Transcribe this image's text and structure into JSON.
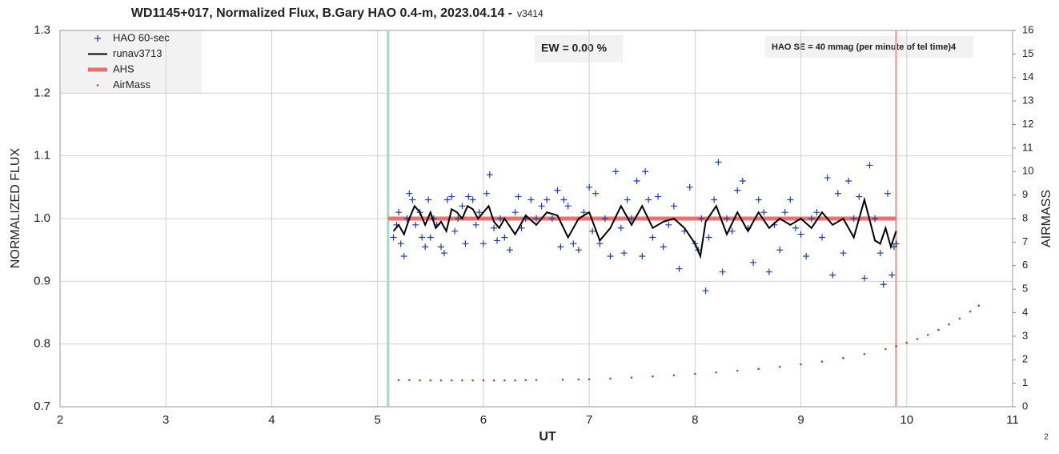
{
  "chart_data": {
    "type": "scatter",
    "title": "WD1145+017, Normalized Flux, B.Gary HAO 0.4-m, 2023.04.14 -",
    "version": "v3414",
    "x_label": "UT",
    "y_label": "NORMALIZED FLUX",
    "y2_label": "AIRMASS",
    "annotations": [
      "EW = 0.00 %",
      "HAO SE =  40 mmag (per minute of tel time)4"
    ],
    "page_number": "2",
    "xlim": [
      2,
      11
    ],
    "xticks": [
      2,
      3,
      4,
      5,
      6,
      7,
      8,
      9,
      10,
      11
    ],
    "ylim": [
      0.7,
      1.3
    ],
    "yticks": [
      0.7,
      0.8,
      0.9,
      {
        "value": 1,
        "label": "1.0"
      },
      1.1,
      1.2,
      1.3
    ],
    "y2lim": [
      0,
      16
    ],
    "y2ticks": [
      0,
      1,
      2,
      3,
      4,
      5,
      6,
      7,
      8,
      9,
      10,
      11,
      12,
      13,
      14,
      15,
      16
    ],
    "grid": true,
    "legend": "upper left",
    "vlines": [
      {
        "x": 5.1,
        "color": "#9fdcc4"
      },
      {
        "x": 9.9,
        "color": "#e9b3b3"
      }
    ],
    "series": [
      {
        "name": "HAO 60-sec",
        "color": "#1f3d99",
        "style": "plus",
        "x": [
          5.15,
          5.18,
          5.2,
          5.22,
          5.25,
          5.28,
          5.3,
          5.33,
          5.36,
          5.4,
          5.42,
          5.45,
          5.48,
          5.5,
          5.53,
          5.56,
          5.6,
          5.63,
          5.66,
          5.7,
          5.73,
          5.76,
          5.8,
          5.83,
          5.86,
          5.9,
          5.93,
          5.96,
          6.0,
          6.03,
          6.06,
          6.1,
          6.13,
          6.16,
          6.2,
          6.25,
          6.3,
          6.33,
          6.36,
          6.4,
          6.45,
          6.5,
          6.55,
          6.6,
          6.65,
          6.7,
          6.73,
          6.76,
          6.8,
          6.85,
          6.9,
          6.95,
          7.0,
          7.03,
          7.06,
          7.1,
          7.15,
          7.2,
          7.25,
          7.3,
          7.33,
          7.36,
          7.4,
          7.45,
          7.5,
          7.53,
          7.56,
          7.6,
          7.65,
          7.7,
          7.75,
          7.8,
          7.85,
          7.9,
          7.95,
          8.0,
          8.03,
          8.06,
          8.1,
          8.13,
          8.18,
          8.22,
          8.26,
          8.3,
          8.35,
          8.4,
          8.45,
          8.5,
          8.55,
          8.6,
          8.65,
          8.7,
          8.75,
          8.8,
          8.85,
          8.9,
          8.95,
          9.0,
          9.05,
          9.1,
          9.15,
          9.2,
          9.25,
          9.3,
          9.35,
          9.4,
          9.45,
          9.5,
          9.55,
          9.6,
          9.65,
          9.7,
          9.75,
          9.78,
          9.82,
          9.86,
          9.88,
          9.9
        ],
        "values": [
          0.97,
          0.99,
          1.01,
          0.96,
          0.94,
          1.0,
          1.04,
          1.03,
          0.99,
          1.01,
          0.97,
          0.955,
          1.03,
          0.97,
          1.0,
          0.99,
          0.955,
          0.945,
          1.03,
          1.035,
          0.98,
          1.0,
          1.02,
          0.96,
          1.035,
          1.03,
          0.99,
          1.01,
          0.96,
          1.04,
          1.07,
          0.985,
          0.965,
          1.0,
          0.97,
          0.95,
          1.01,
          1.035,
          0.985,
          1.0,
          1.03,
          1.0,
          1.02,
          1.03,
          1.0,
          1.045,
          0.955,
          1.03,
          1.02,
          0.96,
          0.95,
          1.01,
          1.05,
          0.98,
          1.04,
          0.96,
          1.0,
          0.94,
          1.075,
          0.985,
          0.945,
          1.03,
          1.0,
          1.06,
          0.94,
          1.075,
          1.03,
          0.97,
          1.035,
          0.955,
          0.99,
          1.02,
          0.92,
          0.98,
          1.05,
          0.96,
          0.95,
          1.0,
          0.885,
          0.97,
          1.03,
          1.09,
          0.915,
          1.0,
          0.98,
          1.045,
          1.06,
          0.985,
          0.93,
          1.03,
          1.01,
          0.915,
          0.99,
          0.95,
          1.01,
          1.03,
          0.985,
          0.975,
          0.94,
          1.0,
          1.01,
          0.97,
          1.065,
          0.91,
          1.04,
          0.945,
          1.06,
          1.0,
          1.035,
          0.905,
          1.085,
          1.0,
          0.945,
          0.895,
          1.04,
          0.91,
          0.955,
          0.96
        ]
      },
      {
        "name": "runav3713",
        "color": "#000000",
        "style": "line",
        "x": [
          5.15,
          5.2,
          5.25,
          5.3,
          5.35,
          5.4,
          5.45,
          5.5,
          5.55,
          5.6,
          5.65,
          5.7,
          5.75,
          5.8,
          5.85,
          5.9,
          5.95,
          6.0,
          6.05,
          6.1,
          6.15,
          6.2,
          6.3,
          6.4,
          6.5,
          6.6,
          6.7,
          6.8,
          6.9,
          7.0,
          7.1,
          7.2,
          7.3,
          7.4,
          7.5,
          7.6,
          7.7,
          7.8,
          7.9,
          8.0,
          8.05,
          8.1,
          8.2,
          8.3,
          8.4,
          8.5,
          8.6,
          8.7,
          8.8,
          8.9,
          9.0,
          9.1,
          9.2,
          9.3,
          9.4,
          9.5,
          9.6,
          9.7,
          9.75,
          9.8,
          9.85,
          9.9
        ],
        "values": [
          0.98,
          0.99,
          0.975,
          1.0,
          1.02,
          1.01,
          0.99,
          1.01,
          0.985,
          0.995,
          0.98,
          1.015,
          1.01,
          1.0,
          1.02,
          1.015,
          1.0,
          1.01,
          1.02,
          0.995,
          0.985,
          1.0,
          0.975,
          1.005,
          0.99,
          1.01,
          1.005,
          0.97,
          1.0,
          1.01,
          0.965,
          0.985,
          1.02,
          0.99,
          1.02,
          0.985,
          0.995,
          1.0,
          0.985,
          0.96,
          0.94,
          0.995,
          1.02,
          0.975,
          1.01,
          0.98,
          1.01,
          0.985,
          1.0,
          0.99,
          1.0,
          0.985,
          1.01,
          0.99,
          1.0,
          0.97,
          1.03,
          0.965,
          0.96,
          0.985,
          0.955,
          0.98
        ]
      },
      {
        "name": "AHS",
        "color": "#e87171",
        "style": "thick",
        "x": [
          5.1,
          9.9
        ],
        "values": [
          1.0,
          1.0
        ]
      },
      {
        "name": "AirMass",
        "color": "#a0522d",
        "style": "dot",
        "axis": "y2",
        "x": [
          5.2,
          5.3,
          5.4,
          5.5,
          5.6,
          5.7,
          5.8,
          5.9,
          6.0,
          6.1,
          6.2,
          6.3,
          6.4,
          6.5,
          6.75,
          6.9,
          7.0,
          7.2,
          7.4,
          7.6,
          7.8,
          8.0,
          8.2,
          8.4,
          8.6,
          8.8,
          9.0,
          9.2,
          9.4,
          9.6,
          9.8,
          9.9,
          10.0,
          10.1,
          10.2,
          10.3,
          10.4,
          10.5,
          10.6,
          10.68
        ],
        "values": [
          1.13,
          1.13,
          1.12,
          1.12,
          1.12,
          1.12,
          1.12,
          1.12,
          1.12,
          1.12,
          1.12,
          1.12,
          1.13,
          1.14,
          1.15,
          1.16,
          1.17,
          1.2,
          1.24,
          1.29,
          1.34,
          1.4,
          1.46,
          1.53,
          1.61,
          1.7,
          1.8,
          1.92,
          2.07,
          2.24,
          2.45,
          2.58,
          2.72,
          2.88,
          3.06,
          3.27,
          3.5,
          3.75,
          4.05,
          4.3
        ]
      }
    ]
  }
}
